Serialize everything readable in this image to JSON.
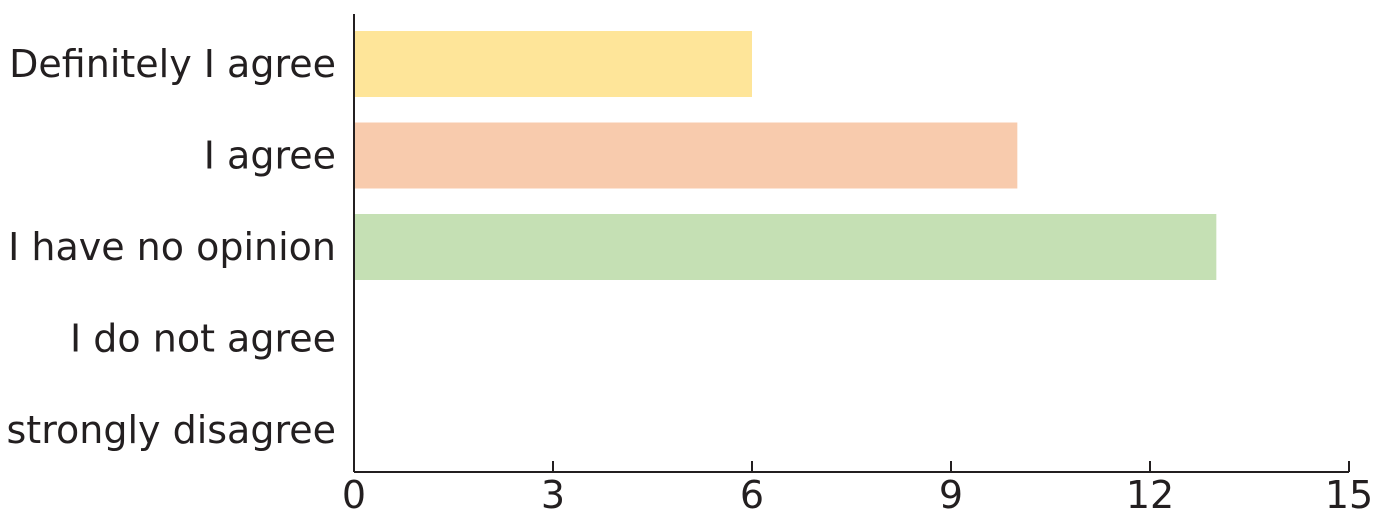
{
  "chart_data": {
    "type": "bar",
    "orientation": "horizontal",
    "categories": [
      "Definitely I agree",
      "I agree",
      "I have no opinion",
      "I do not agree",
      "I strongly disagree"
    ],
    "values": [
      6,
      10,
      13,
      0,
      0
    ],
    "bar_colors": [
      "#fee599",
      "#f8cbad",
      "#c5e0b4",
      "#dbe6f4",
      "#e2d3ec"
    ],
    "xlim": [
      0,
      15
    ],
    "xticks": [
      0,
      3,
      6,
      9,
      12,
      15
    ],
    "title": "",
    "xlabel": "",
    "ylabel": "",
    "grid": false,
    "legend": "none"
  }
}
